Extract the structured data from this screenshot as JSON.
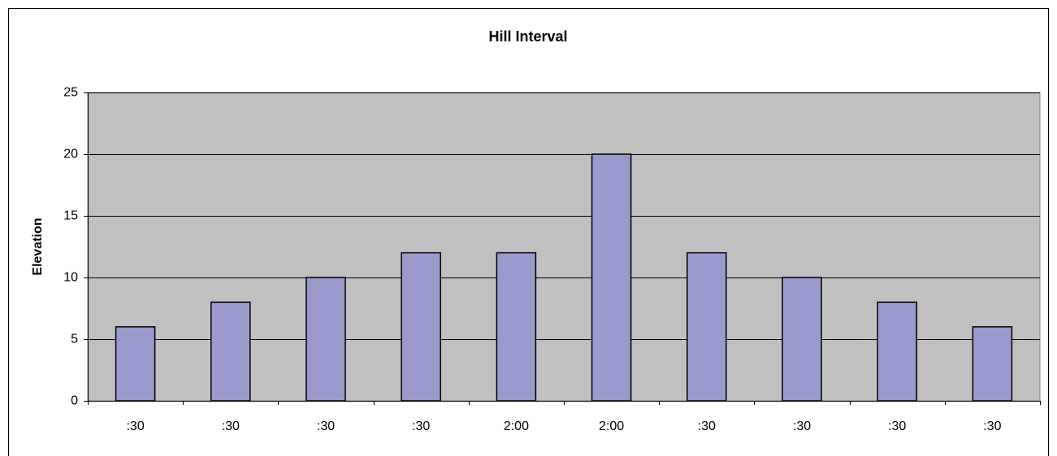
{
  "chart_data": {
    "type": "bar",
    "title": "Hill Interval",
    "y_label": "Elevation",
    "categories": [
      ":30",
      ":30",
      ":30",
      ":30",
      "2:00",
      "2:00",
      ":30",
      ":30",
      ":30",
      ":30"
    ],
    "values": [
      6,
      8,
      10,
      12,
      12,
      20,
      12,
      10,
      8,
      6
    ],
    "color": "#9999cc",
    "plot_background": "#c0c0c0",
    "ylim": [
      0,
      25
    ],
    "yticks": [
      0,
      5,
      10,
      15,
      20,
      25
    ],
    "grid": true
  }
}
